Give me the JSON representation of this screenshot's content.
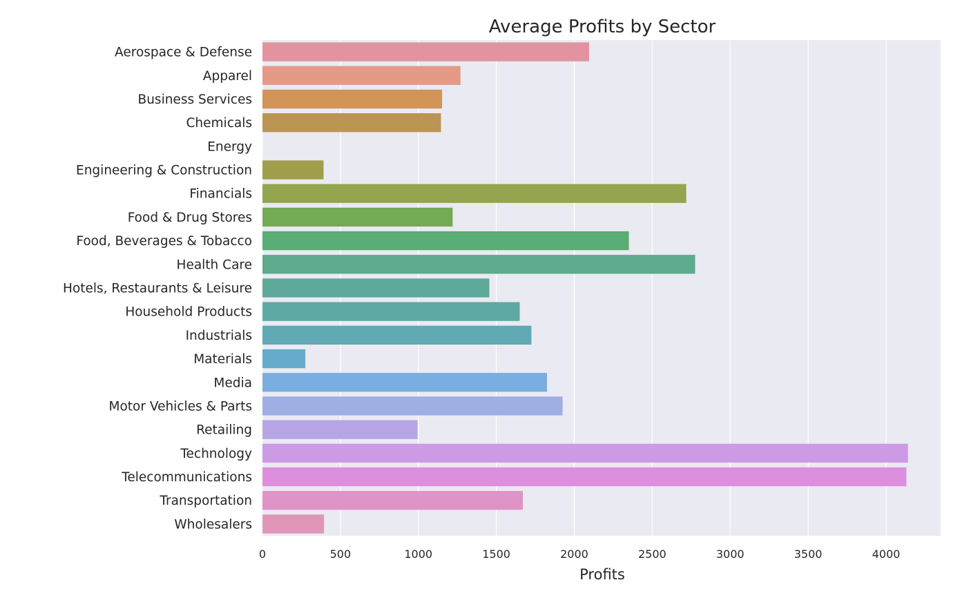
{
  "chart_data": {
    "type": "bar",
    "orientation": "horizontal",
    "title": "Average Profits by Sector",
    "xlabel": "Profits",
    "ylabel": "",
    "xlim": [
      0,
      4350
    ],
    "xticks": [
      0,
      500,
      1000,
      1500,
      2000,
      2500,
      3000,
      3500,
      4000
    ],
    "grid": true,
    "categories": [
      "Aerospace & Defense",
      "Apparel",
      "Business Services",
      "Chemicals",
      "Energy",
      "Engineering & Construction",
      "Financials",
      "Food & Drug Stores",
      "Food, Beverages & Tobacco",
      "Health Care",
      "Hotels, Restaurants & Leisure",
      "Household Products",
      "Industrials",
      "Materials",
      "Media",
      "Motor Vehicles & Parts",
      "Retailing",
      "Technology",
      "Telecommunications",
      "Transportation",
      "Wholesalers"
    ],
    "values": [
      2095,
      1270,
      1152,
      1145,
      0,
      392,
      2718,
      1220,
      2350,
      2775,
      1455,
      1650,
      1725,
      275,
      1825,
      1925,
      995,
      4140,
      4130,
      1670,
      395
    ],
    "colors": [
      "#e1949f",
      "#e49a86",
      "#d39457",
      "#bb9554",
      "#a89b50",
      "#a09e4b",
      "#94a54f",
      "#74aa53",
      "#5aad74",
      "#5eaa8c",
      "#5fa99b",
      "#5ea9a3",
      "#62a9b6",
      "#66abcb",
      "#7aaee0",
      "#a0aee6",
      "#b8a5e6",
      "#cd9ae6",
      "#dc8fdd",
      "#df93c7",
      "#e096b8"
    ],
    "background": "#eaeaf2"
  }
}
